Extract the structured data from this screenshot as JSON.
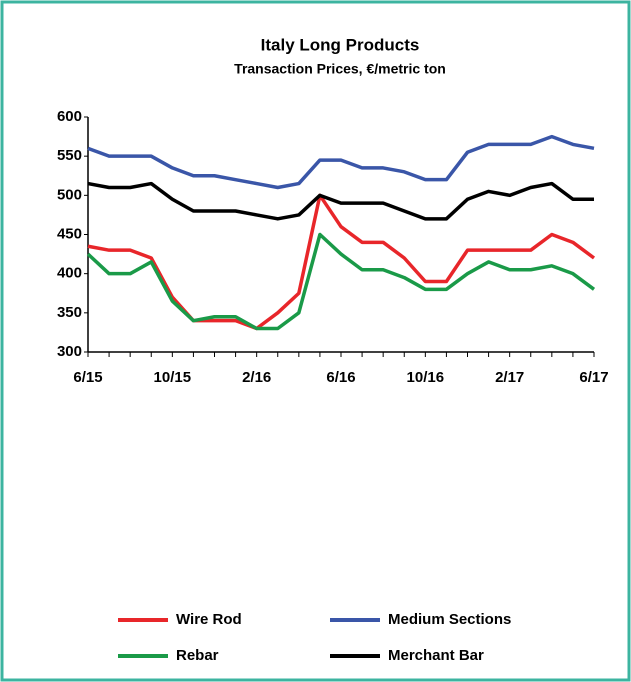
{
  "chart_data": {
    "type": "line",
    "title": "Italy Long Products",
    "subtitle": "Transaction Prices, €/metric ton",
    "categories": [
      "6/15",
      null,
      null,
      null,
      "10/15",
      null,
      null,
      null,
      "2/16",
      null,
      null,
      null,
      "6/16",
      null,
      null,
      null,
      "10/16",
      null,
      null,
      null,
      "2/17",
      null,
      null,
      null,
      "6/17"
    ],
    "series": [
      {
        "name": "Wire Rod",
        "color": "#e8262a",
        "values": [
          435,
          430,
          430,
          420,
          370,
          340,
          340,
          340,
          330,
          350,
          375,
          500,
          460,
          440,
          440,
          420,
          390,
          390,
          430,
          430,
          430,
          430,
          450,
          440,
          420
        ]
      },
      {
        "name": "Medium Sections",
        "color": "#3a56a8",
        "values": [
          560,
          550,
          550,
          550,
          535,
          525,
          525,
          520,
          515,
          510,
          515,
          545,
          545,
          535,
          535,
          530,
          520,
          520,
          555,
          565,
          565,
          565,
          575,
          565,
          560
        ]
      },
      {
        "name": "Rebar",
        "color": "#1a9a48",
        "values": [
          425,
          400,
          400,
          415,
          365,
          340,
          345,
          345,
          330,
          330,
          350,
          450,
          425,
          405,
          405,
          395,
          380,
          380,
          400,
          415,
          405,
          405,
          410,
          400,
          380
        ]
      },
      {
        "name": "Merchant Bar",
        "color": "#000000",
        "values": [
          515,
          510,
          510,
          515,
          495,
          480,
          480,
          480,
          475,
          470,
          475,
          500,
          490,
          490,
          490,
          480,
          470,
          470,
          495,
          505,
          500,
          510,
          515,
          495,
          495
        ]
      }
    ],
    "ylim": [
      300,
      600
    ],
    "yticks": [
      300,
      350,
      400,
      450,
      500,
      550,
      600
    ],
    "grid": false
  }
}
